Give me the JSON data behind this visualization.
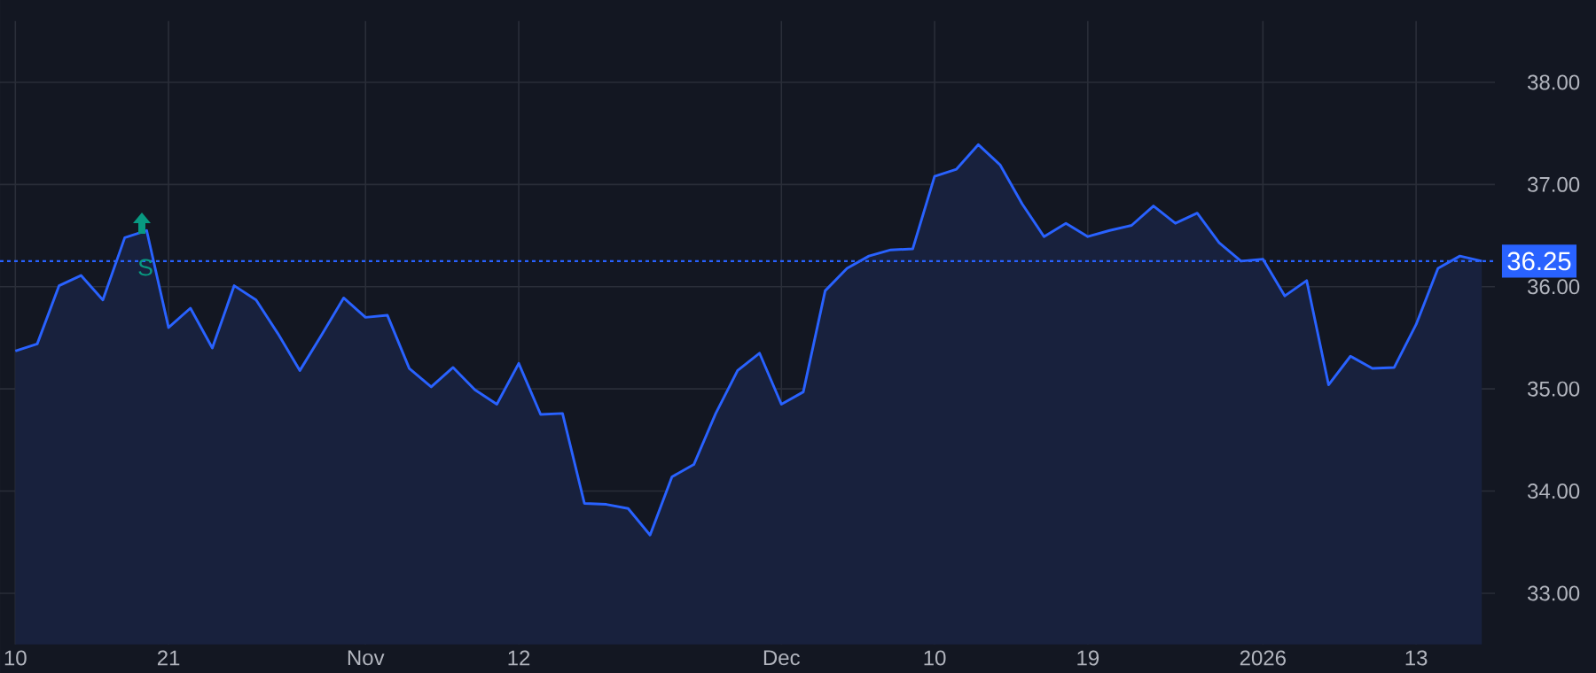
{
  "chart_data": {
    "type": "area",
    "categories": [
      "10",
      null,
      null,
      null,
      null,
      null,
      null,
      "21",
      null,
      null,
      null,
      null,
      null,
      null,
      null,
      null,
      "Nov",
      null,
      null,
      null,
      null,
      null,
      null,
      "12",
      null,
      null,
      null,
      null,
      null,
      null,
      null,
      null,
      null,
      null,
      null,
      "Dec",
      null,
      null,
      null,
      null,
      null,
      null,
      "10",
      null,
      null,
      null,
      null,
      null,
      null,
      "19",
      null,
      null,
      null,
      null,
      null,
      null,
      null,
      "2026",
      null,
      null,
      null,
      null,
      null,
      null,
      "13",
      null,
      null,
      null
    ],
    "series": [
      {
        "color": "#2962ff",
        "values": [
          35.37,
          35.44,
          36.01,
          36.11,
          35.87,
          36.48,
          36.55,
          35.6,
          35.79,
          35.4,
          36.01,
          35.87,
          35.54,
          35.18,
          35.53,
          35.89,
          35.7,
          35.72,
          35.2,
          35.02,
          35.21,
          34.99,
          34.85,
          35.25,
          34.75,
          34.76,
          33.88,
          33.87,
          33.83,
          33.57,
          34.14,
          34.26,
          34.76,
          35.18,
          35.35,
          34.85,
          34.97,
          35.96,
          36.18,
          36.3,
          36.36,
          36.37,
          37.08,
          37.15,
          37.39,
          37.19,
          36.81,
          36.49,
          36.62,
          36.49,
          36.55,
          36.6,
          36.79,
          36.62,
          36.72,
          36.43,
          36.25,
          36.27,
          35.91,
          36.06,
          35.04,
          35.32,
          35.2,
          35.21,
          35.63,
          36.18,
          36.3,
          36.25
        ]
      }
    ],
    "ylim": [
      32.5,
      38.6
    ],
    "yticks": [
      {
        "value": 33,
        "label": "33.00"
      },
      {
        "value": 34,
        "label": "34.00"
      },
      {
        "value": 35,
        "label": "35.00"
      },
      {
        "value": 36,
        "label": "36.00"
      },
      {
        "value": 37,
        "label": "37.00"
      },
      {
        "value": 38,
        "label": "38.00"
      }
    ],
    "grid": true,
    "ref_lines": [
      {
        "axis": "y",
        "value": 36.25,
        "label": "36.25",
        "color": "#2962ff",
        "line_style": "dotted"
      }
    ],
    "annotations": [
      "S"
    ]
  }
}
